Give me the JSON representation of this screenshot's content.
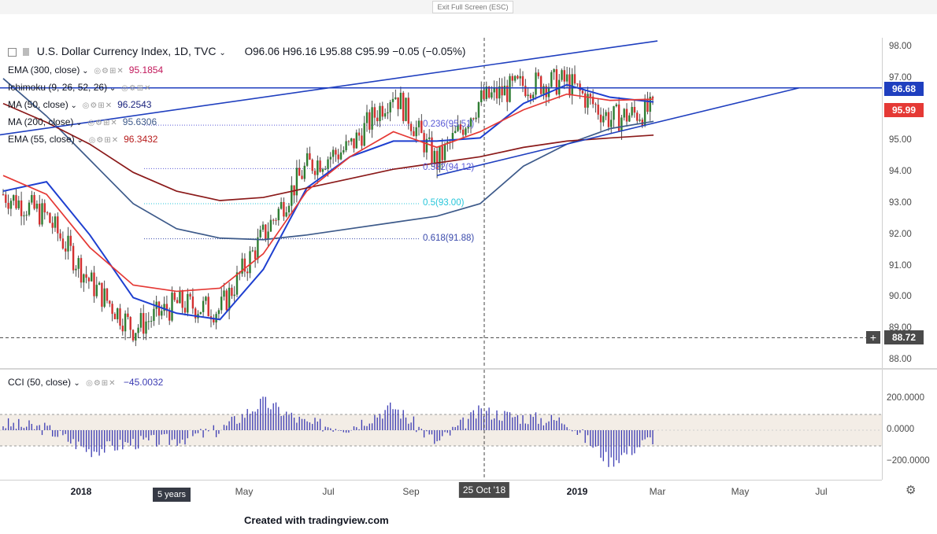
{
  "top_bar": {
    "exit_label": "Exit Full Screen (ESC)"
  },
  "header": {
    "symbol_title": "U.S. Dollar Currency Index, 1D, TVC",
    "ohlc": "O96.06  H96.16  L95.88  C95.99  −0.05 (−0.05%)"
  },
  "indicators": [
    {
      "name": "EMA (300, close)",
      "value": "95.1854",
      "color": "#c2185b"
    },
    {
      "name": "Ichimoku (9, 26, 52, 26)",
      "value": "",
      "color": "#2962ff"
    },
    {
      "name": "MA (50, close)",
      "value": "96.2543",
      "color": "#1a237e"
    },
    {
      "name": "MA (200, close)",
      "value": "95.6306",
      "color": "#3f5a8a"
    },
    {
      "name": "EMA (55, close)",
      "value": "96.3432",
      "color": "#b71c1c"
    }
  ],
  "price_axis": {
    "ticks": [
      "98.00",
      "97.00",
      "96.00",
      "95.00",
      "94.00",
      "93.00",
      "92.00",
      "91.00",
      "90.00",
      "89.00",
      "88.00"
    ],
    "flag_upper": {
      "text": "96.68",
      "color": "#1f3fbf"
    },
    "flag_current": {
      "text": "95.99",
      "color": "#e53935"
    },
    "crosshair_price": "88.72"
  },
  "fibonacci": [
    {
      "label": "0.236(95.51)",
      "color": "#5b5bd6"
    },
    {
      "label": "0.382(94.12)",
      "color": "#5b5bd6"
    },
    {
      "label": "0.5(93.00)",
      "color": "#26c6da"
    },
    {
      "label": "0.618(91.88)",
      "color": "#3949ab"
    }
  ],
  "cci": {
    "name": "CCI (50, close)",
    "value": "−45.0032",
    "ticks": [
      "200.0000",
      "0.0000",
      "−200.0000"
    ],
    "color": "#3b3bb3"
  },
  "time_axis": {
    "labels": [
      "2018",
      "May",
      "Jul",
      "Sep",
      "2019",
      "Mar",
      "May",
      "Jul"
    ],
    "crosshair_date": "25 Oct '18",
    "range_chip": "5 years"
  },
  "credit": "Created with tradingview.com",
  "chart_data": {
    "type": "line",
    "title": "U.S. Dollar Currency Index, 1D, TVC",
    "ylim": [
      87.7,
      98.4
    ],
    "x": [
      "2017-11",
      "2017-12",
      "2018-01",
      "2018-02",
      "2018-03",
      "2018-04",
      "2018-05",
      "2018-06",
      "2018-07",
      "2018-08",
      "2018-09",
      "2018-10",
      "2018-11",
      "2018-12",
      "2019-01",
      "2019-02"
    ],
    "series": [
      {
        "name": "Price",
        "values": [
          93.3,
          92.6,
          90.5,
          89.0,
          89.8,
          89.6,
          92.0,
          94.2,
          94.8,
          96.6,
          94.3,
          96.3,
          96.8,
          96.9,
          95.7,
          96.0
        ]
      },
      {
        "name": "MA (50, close)",
        "values": [
          93.4,
          93.7,
          92.0,
          90.0,
          89.5,
          89.3,
          90.9,
          93.5,
          94.5,
          95.0,
          95.0,
          95.1,
          96.2,
          96.8,
          96.4,
          96.25
        ]
      },
      {
        "name": "MA (200, close)",
        "values": [
          97.0,
          95.8,
          94.4,
          93.0,
          92.2,
          91.9,
          91.85,
          92.0,
          92.2,
          92.4,
          92.6,
          93.0,
          94.2,
          94.9,
          95.4,
          95.63
        ]
      },
      {
        "name": "EMA (300, close)",
        "values": [
          96.2,
          95.6,
          94.9,
          94.0,
          93.4,
          93.1,
          93.2,
          93.5,
          93.8,
          94.1,
          94.3,
          94.5,
          94.8,
          95.0,
          95.1,
          95.19
        ]
      },
      {
        "name": "EMA (55, close)",
        "values": [
          93.9,
          93.3,
          91.6,
          90.4,
          90.2,
          90.3,
          91.4,
          93.4,
          94.5,
          95.3,
          94.8,
          95.3,
          96.0,
          96.5,
          96.3,
          96.34
        ]
      }
    ],
    "cci_values": [
      40,
      10,
      -130,
      -80,
      -60,
      0,
      180,
      40,
      20,
      150,
      -80,
      120,
      80,
      60,
      -200,
      -45
    ]
  }
}
